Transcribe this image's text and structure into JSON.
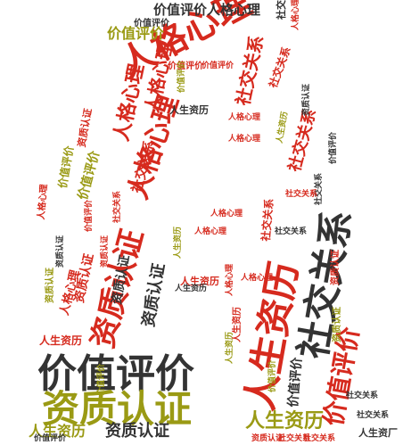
{
  "words": [
    {
      "id": "w01",
      "text": "人格心理",
      "color": "#d62a1e"
    },
    {
      "id": "w02",
      "text": "价值评价",
      "color": "#333333"
    },
    {
      "id": "w03",
      "text": "资质认证",
      "color": "#9a9a14"
    },
    {
      "id": "w04",
      "text": "人生资历",
      "color": "#d62a1e"
    },
    {
      "id": "w05",
      "text": "社交关系",
      "color": "#333333"
    },
    {
      "id": "w06",
      "text": "资质认证",
      "color": "#d62a1e"
    },
    {
      "id": "w07",
      "text": "人格心理",
      "color": "#d62a1e"
    },
    {
      "id": "w08",
      "text": "价值评价",
      "color": "#d62a1e"
    },
    {
      "id": "w09",
      "text": "价值评价人格心理",
      "color": "#333333"
    },
    {
      "id": "w10",
      "text": "人生资历",
      "color": "#9a9a14"
    },
    {
      "id": "w11",
      "text": "资质认证",
      "color": "#333333"
    },
    {
      "id": "w12",
      "text": "人生资历",
      "color": "#9a9a14"
    },
    {
      "id": "w13",
      "text": "价值评价",
      "color": "#9a9a14"
    },
    {
      "id": "w14",
      "text": "社交关系",
      "color": "#d62a1e"
    },
    {
      "id": "w15",
      "text": "人格心理",
      "color": "#d62a1e"
    },
    {
      "id": "w16",
      "text": "人格心理",
      "color": "#d62a1e"
    },
    {
      "id": "w17",
      "text": "社交关系",
      "color": "#d62a1e"
    },
    {
      "id": "w18",
      "text": "资质认证",
      "color": "#333333"
    },
    {
      "id": "w19",
      "text": "价值评价",
      "color": "#333333"
    },
    {
      "id": "w20",
      "text": "人生资历",
      "color": "#d62a1e"
    },
    {
      "id": "w21",
      "text": "价值评价",
      "color": "#9a9a14"
    },
    {
      "id": "w22",
      "text": "社交关系",
      "color": "#d62a1e"
    },
    {
      "id": "w23",
      "text": "资质认证",
      "color": "#d62a1e"
    },
    {
      "id": "w24",
      "text": "人格心理",
      "color": "#d62a1e"
    },
    {
      "id": "w25",
      "text": "人生资历",
      "color": "#333333"
    },
    {
      "id": "w26",
      "text": "人生资历",
      "color": "#d62a1e"
    },
    {
      "id": "w27",
      "text": "人格心理",
      "color": "#d62a1e"
    },
    {
      "id": "w28",
      "text": "人格心理",
      "color": "#d62a1e"
    },
    {
      "id": "w29",
      "text": "社交关系",
      "color": "#d62a1e"
    },
    {
      "id": "w30",
      "text": "社交关系",
      "color": "#333333"
    },
    {
      "id": "w31",
      "text": "价值评价",
      "color": "#333333"
    },
    {
      "id": "w32",
      "text": "资质认证",
      "color": "#333333"
    },
    {
      "id": "w33",
      "text": "人生资历",
      "color": "#333333"
    },
    {
      "id": "w34",
      "text": "社交关系",
      "color": "#d62a1e"
    },
    {
      "id": "w35",
      "text": "社交关系",
      "color": "#333333"
    },
    {
      "id": "w36",
      "text": "资质认证",
      "color": "#d62a1e"
    },
    {
      "id": "w37",
      "text": "人生资厂",
      "color": "#333333"
    },
    {
      "id": "w38",
      "text": "价值评价",
      "color": "#d62a1e"
    },
    {
      "id": "w39",
      "text": "人格心理",
      "color": "#d62a1e"
    },
    {
      "id": "w40",
      "text": "价值评价",
      "color": "#9a9a14"
    },
    {
      "id": "w41",
      "text": "资质认证",
      "color": "#9a9a14"
    },
    {
      "id": "w42",
      "text": "社交关系",
      "color": "#d62a1e"
    },
    {
      "id": "w43",
      "text": "价值评价",
      "color": "#9a9a14"
    },
    {
      "id": "w44",
      "text": "人生资历",
      "color": "#9a9a14"
    },
    {
      "id": "w45",
      "text": "资质认证",
      "color": "#d62a1e"
    },
    {
      "id": "w46",
      "text": "人格心理",
      "color": "#d62a1e"
    },
    {
      "id": "w47",
      "text": "价值评价",
      "color": "#333333"
    },
    {
      "id": "w48",
      "text": "社交关系",
      "color": "#d62a1e"
    },
    {
      "id": "w49",
      "text": "人生资历",
      "color": "#9a9a14"
    },
    {
      "id": "w50",
      "text": "资质认证",
      "color": "#d62a1e"
    },
    {
      "id": "w51",
      "text": "价值评价",
      "color": "#9a9a14"
    },
    {
      "id": "w52",
      "text": "社交关系",
      "color": "#333333"
    },
    {
      "id": "w53",
      "text": "人格心理",
      "color": "#d62a1e"
    },
    {
      "id": "w54",
      "text": "资质认证",
      "color": "#333333"
    },
    {
      "id": "w55",
      "text": "价值评价",
      "color": "#d62a1e"
    },
    {
      "id": "w56",
      "text": "人格心理",
      "color": "#d62a1e"
    },
    {
      "id": "w57",
      "text": "社交关系",
      "color": "#333333"
    },
    {
      "id": "w58",
      "text": "人生资历",
      "color": "#d62a1e"
    },
    {
      "id": "w59",
      "text": "价值评价",
      "color": "#9a9a14"
    },
    {
      "id": "w60",
      "text": "人格心理",
      "color": "#d62a1e"
    },
    {
      "id": "w61",
      "text": "社交关系",
      "color": "#d62a1e"
    },
    {
      "id": "w62",
      "text": "价值评价",
      "color": "#333333"
    },
    {
      "id": "w63",
      "text": "资质认证",
      "color": "#9a9a14"
    },
    {
      "id": "w64",
      "text": "社交关系",
      "color": "#333333"
    },
    {
      "id": "w65",
      "text": "资质认证",
      "color": "#333333"
    },
    {
      "id": "w66",
      "text": "人生资历",
      "color": "#9a9a14"
    },
    {
      "id": "w67",
      "text": "人格心理",
      "color": "#d62a1e"
    },
    {
      "id": "w68",
      "text": "价值评价",
      "color": "#d62a1e"
    },
    {
      "id": "w69",
      "text": "社交关系",
      "color": "#d62a1e"
    },
    {
      "id": "w70",
      "text": "资质认证",
      "color": "#d62a1e"
    }
  ]
}
